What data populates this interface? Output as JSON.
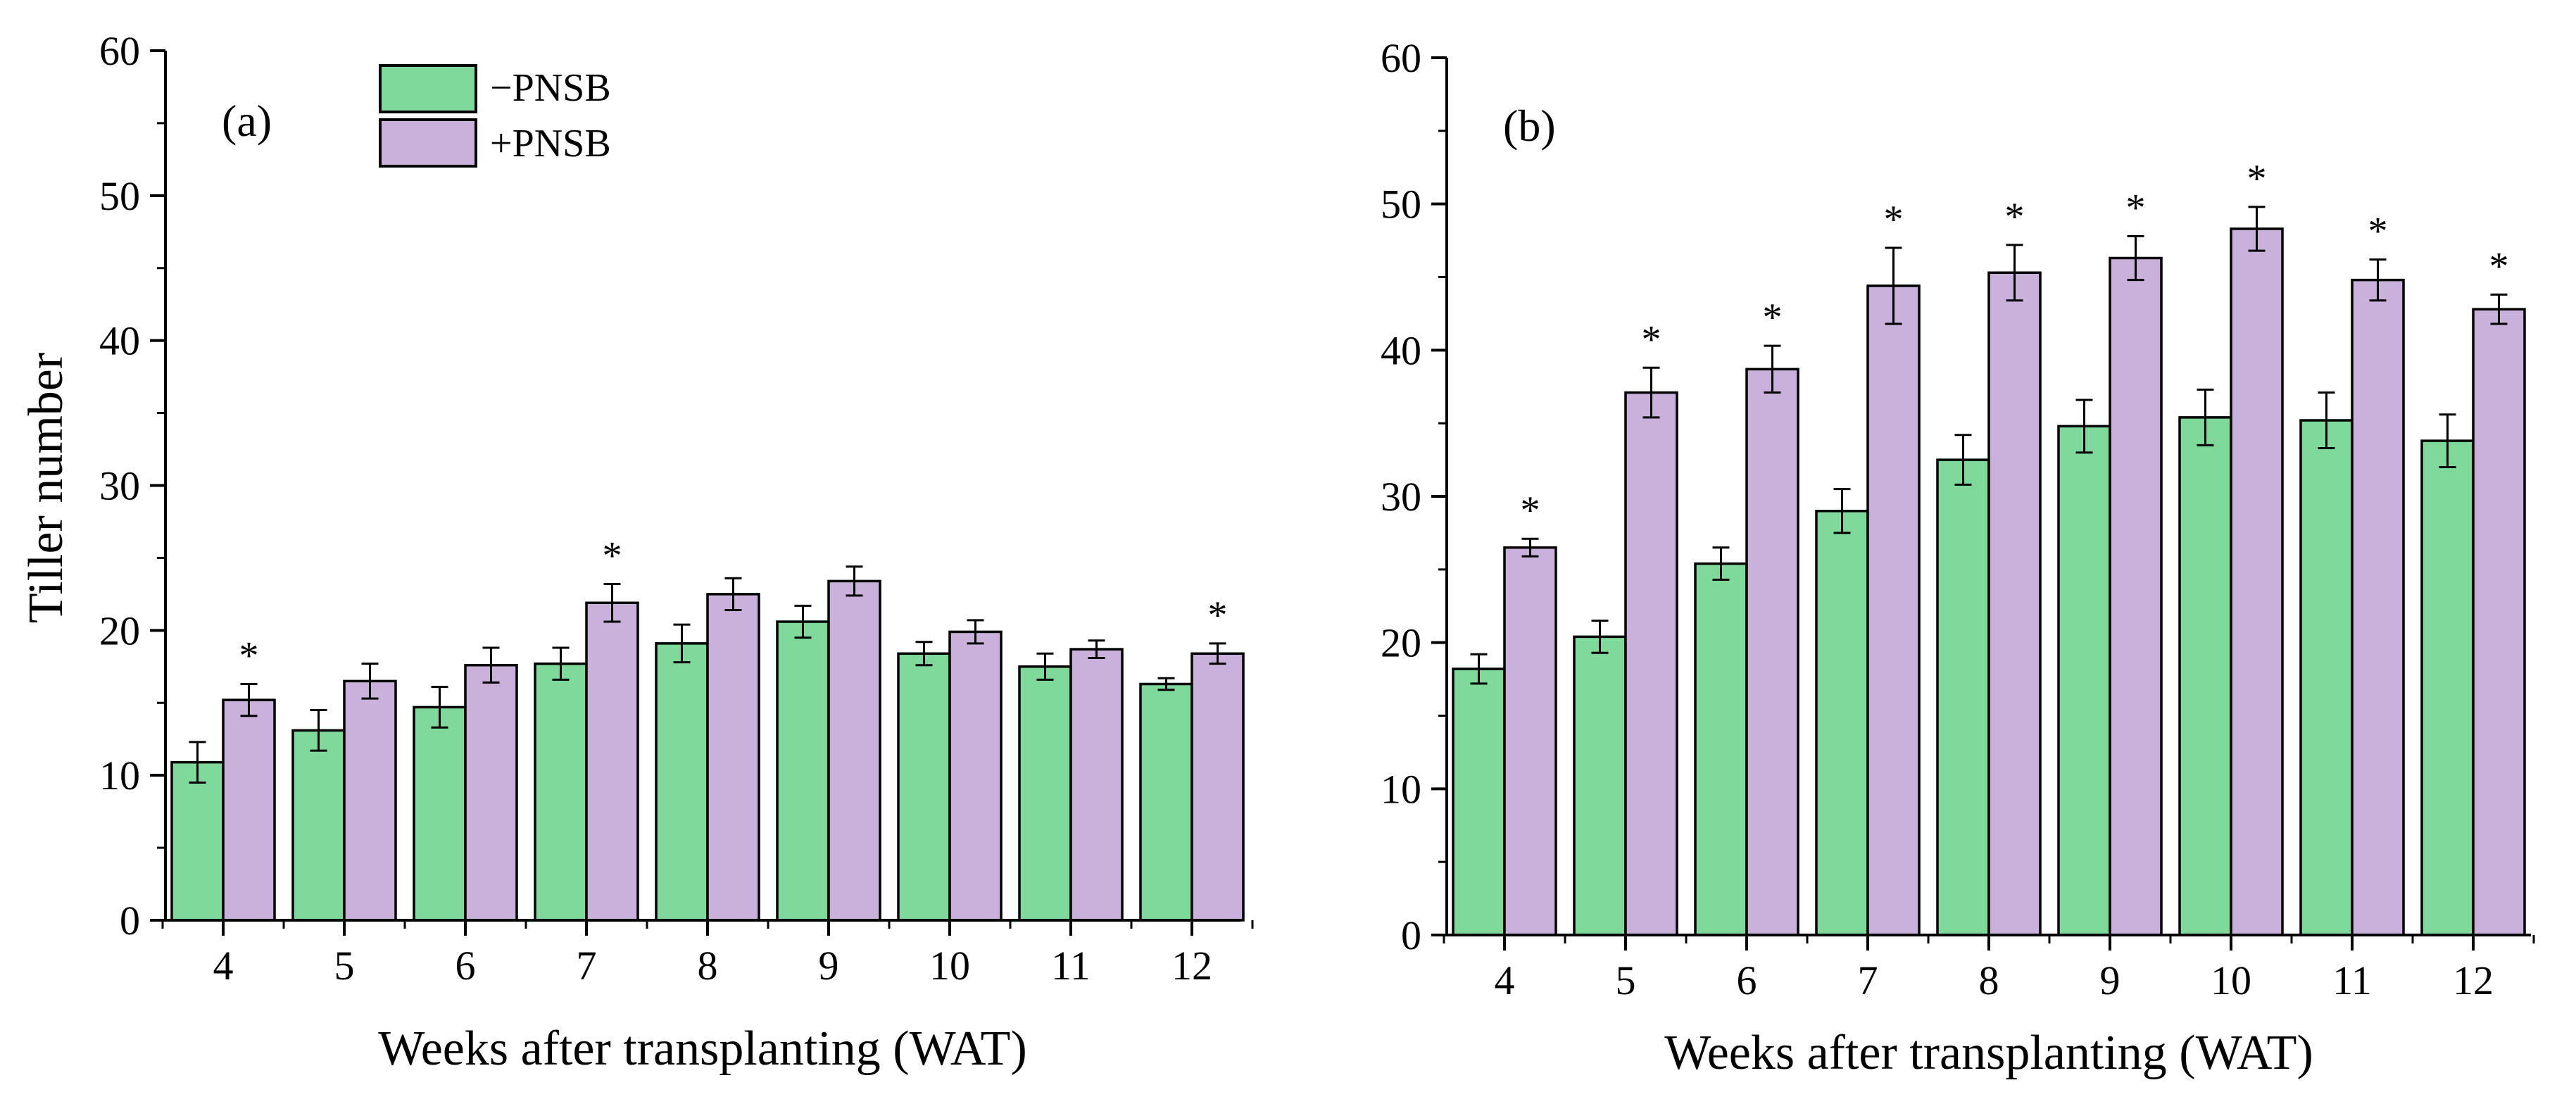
{
  "colors": {
    "minus_pnsb": "#7ed99a",
    "plus_pnsb": "#c9b1dc",
    "outline": "#000000"
  },
  "chart_data": [
    {
      "type": "bar",
      "panel_label": "(a)",
      "title": "",
      "xlabel": "Weeks after transplanting (WAT)",
      "ylabel": "Tiller number",
      "ylim": [
        0,
        60
      ],
      "yticks": [
        0,
        10,
        20,
        30,
        40,
        50,
        60
      ],
      "grid": false,
      "legend_position": "top-left",
      "categories": [
        "4",
        "5",
        "6",
        "7",
        "8",
        "9",
        "10",
        "11",
        "12"
      ],
      "series": [
        {
          "name": "−PNSB",
          "color": "#7ed99a",
          "values": [
            10.9,
            13.1,
            14.7,
            17.7,
            19.1,
            20.6,
            18.4,
            17.5,
            16.3
          ],
          "errors": [
            1.4,
            1.4,
            1.4,
            1.1,
            1.3,
            1.1,
            0.8,
            0.9,
            0.4
          ]
        },
        {
          "name": "+PNSB",
          "color": "#c9b1dc",
          "values": [
            15.2,
            16.5,
            17.6,
            21.9,
            22.5,
            23.4,
            19.9,
            18.7,
            18.4
          ],
          "errors": [
            1.1,
            1.2,
            1.2,
            1.3,
            1.1,
            1.0,
            0.8,
            0.6,
            0.7
          ]
        }
      ],
      "significance": [
        true,
        false,
        false,
        true,
        false,
        false,
        false,
        false,
        true
      ],
      "significance_marker": "*"
    },
    {
      "type": "bar",
      "panel_label": "(b)",
      "title": "",
      "xlabel": "Weeks after transplanting (WAT)",
      "ylabel": "",
      "ylim": [
        0,
        60
      ],
      "yticks": [
        0,
        10,
        20,
        30,
        40,
        50,
        60
      ],
      "grid": false,
      "categories": [
        "4",
        "5",
        "6",
        "7",
        "8",
        "9",
        "10",
        "11",
        "12"
      ],
      "series": [
        {
          "name": "−PNSB",
          "color": "#7ed99a",
          "values": [
            18.2,
            20.4,
            25.4,
            29.0,
            32.5,
            34.8,
            35.4,
            35.2,
            33.8
          ],
          "errors": [
            1.0,
            1.1,
            1.1,
            1.5,
            1.7,
            1.8,
            1.9,
            1.9,
            1.8
          ]
        },
        {
          "name": "+PNSB",
          "color": "#c9b1dc",
          "values": [
            26.5,
            37.1,
            38.7,
            44.4,
            45.3,
            46.3,
            48.3,
            44.8,
            42.8
          ],
          "errors": [
            0.6,
            1.7,
            1.6,
            2.6,
            1.9,
            1.5,
            1.5,
            1.4,
            1.0
          ]
        }
      ],
      "significance": [
        true,
        true,
        true,
        true,
        true,
        true,
        true,
        true,
        true
      ],
      "significance_marker": "*"
    }
  ]
}
